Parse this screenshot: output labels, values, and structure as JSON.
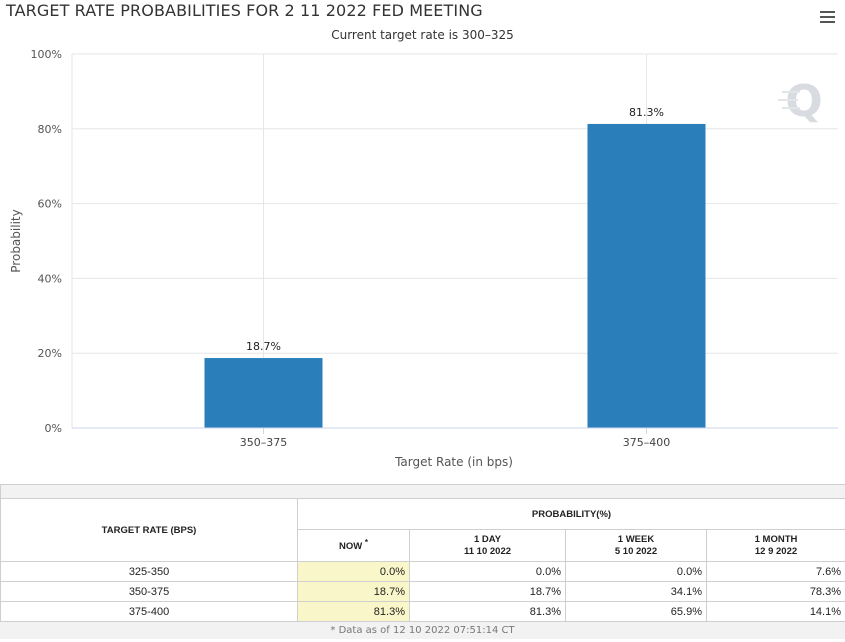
{
  "chart_data": {
    "type": "bar",
    "title": "TARGET RATE PROBABILITIES FOR 2 11 2022 FED MEETING",
    "subtitle": "Current target rate is 300–325",
    "categories": [
      "350–375",
      "375–400"
    ],
    "values": [
      18.7,
      81.3
    ],
    "data_labels": [
      "18.7%",
      "81.3%"
    ],
    "xlabel": "Target Rate (in bps)",
    "ylabel": "Probability",
    "ylim": [
      0,
      100
    ],
    "yticks": [
      0,
      20,
      40,
      60,
      80,
      100
    ],
    "ytick_labels": [
      "0%",
      "20%",
      "40%",
      "60%",
      "80%",
      "100%"
    ],
    "bar_color": "#2a7fba",
    "grid": true,
    "legend": "none"
  },
  "watermark": {
    "letter": "Q"
  },
  "table": {
    "header": {
      "target_rate": "TARGET RATE (BPS)",
      "probability": "PROBABILITY(%)",
      "now": "NOW",
      "now_mark": "*",
      "col1_line1": "1 DAY",
      "col1_line2": "11 10 2022",
      "col2_line1": "1 WEEK",
      "col2_line2": "5 10 2022",
      "col3_line1": "1 MONTH",
      "col3_line2": "12 9 2022"
    },
    "rows": [
      {
        "rate": "325-350",
        "now": "0.0%",
        "day": "0.0%",
        "week": "0.0%",
        "month": "7.6%"
      },
      {
        "rate": "350-375",
        "now": "18.7%",
        "day": "18.7%",
        "week": "34.1%",
        "month": "78.3%"
      },
      {
        "rate": "375-400",
        "now": "81.3%",
        "day": "81.3%",
        "week": "65.9%",
        "month": "14.1%"
      }
    ],
    "footnote": "* Data as of 12 10 2022 07:51:14 CT"
  }
}
